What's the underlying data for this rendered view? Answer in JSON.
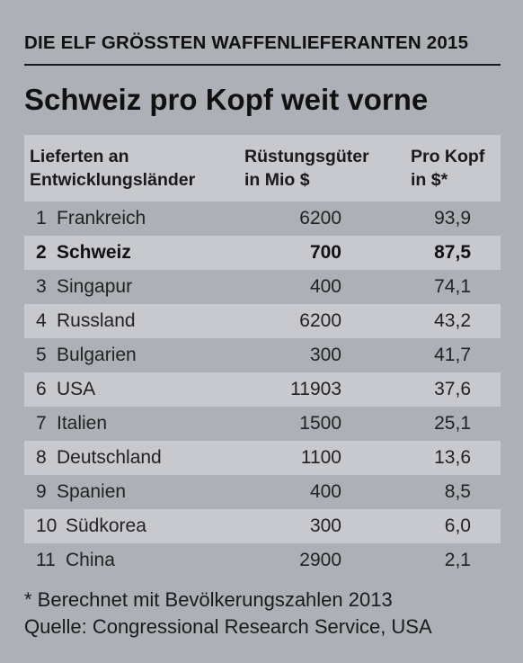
{
  "kicker": "DIE ELF GRÖSSTEN WAFFENLIEFERANTEN 2015",
  "title": "Schweiz pro Kopf weit vorne",
  "header": {
    "col1": [
      "Lieferten an",
      "Entwicklungsländer"
    ],
    "col2": [
      "Rüstungsgüter",
      "in Mio $"
    ],
    "col3": [
      "Pro Kopf",
      "in $*"
    ]
  },
  "chart_data": {
    "type": "table",
    "title": "Schweiz pro Kopf weit vorne",
    "columns": [
      "Lieferten an Entwicklungsländer",
      "Rüstungsgüter in Mio $",
      "Pro Kopf in $*"
    ],
    "rows": [
      {
        "rank": "1",
        "country": "Frankreich",
        "value": "6200",
        "per_capita": "93,9"
      },
      {
        "rank": "2",
        "country": "Schweiz",
        "value": "700",
        "per_capita": "87,5"
      },
      {
        "rank": "3",
        "country": "Singapur",
        "value": "400",
        "per_capita": "74,1"
      },
      {
        "rank": "4",
        "country": "Russland",
        "value": "6200",
        "per_capita": "43,2"
      },
      {
        "rank": "5",
        "country": "Bulgarien",
        "value": "300",
        "per_capita": "41,7"
      },
      {
        "rank": "6",
        "country": "USA",
        "value": "11903",
        "per_capita": "37,6"
      },
      {
        "rank": "7",
        "country": "Italien",
        "value": "1500",
        "per_capita": "25,1"
      },
      {
        "rank": "8",
        "country": "Deutschland",
        "value": "1100",
        "per_capita": "13,6"
      },
      {
        "rank": "9",
        "country": "Spanien",
        "value": "400",
        "per_capita": "8,5"
      },
      {
        "rank": "10",
        "country": "Südkorea",
        "value": "300",
        "per_capita": "6,0"
      },
      {
        "rank": "11",
        "country": "China",
        "value": "2900",
        "per_capita": "2,1"
      }
    ],
    "highlighted_row": "Schweiz"
  },
  "footnote": "* Berechnet mit Bevölkerungszahlen 2013",
  "source": "Quelle: Congressional Research Service, USA",
  "colors": {
    "background": "#aeb0b7",
    "stripe": "#c8c9cf",
    "text": "#1a1a1a"
  }
}
